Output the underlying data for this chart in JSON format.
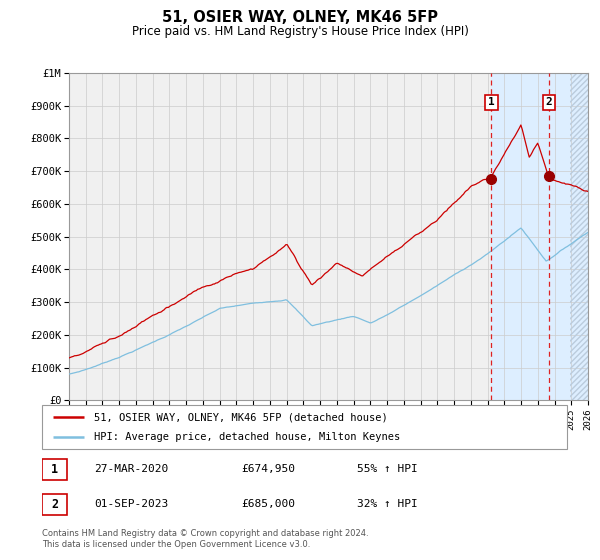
{
  "title": "51, OSIER WAY, OLNEY, MK46 5FP",
  "subtitle": "Price paid vs. HM Land Registry's House Price Index (HPI)",
  "legend_line1": "51, OSIER WAY, OLNEY, MK46 5FP (detached house)",
  "legend_line2": "HPI: Average price, detached house, Milton Keynes",
  "footer1": "Contains HM Land Registry data © Crown copyright and database right 2024.",
  "footer2": "This data is licensed under the Open Government Licence v3.0.",
  "hpi_color": "#7fbfdf",
  "price_color": "#cc0000",
  "marker_color": "#990000",
  "vline_color": "#dd2222",
  "shade_color": "#ddeeff",
  "hatch_color": "#bbccdd",
  "grid_color": "#cccccc",
  "bg_color": "#f0f0f0",
  "xmin": 1995,
  "xmax": 2026,
  "ymin": 0,
  "ymax": 1000000,
  "yticks": [
    0,
    100000,
    200000,
    300000,
    400000,
    500000,
    600000,
    700000,
    800000,
    900000,
    1000000
  ],
  "ytick_labels": [
    "£0",
    "£100K",
    "£200K",
    "£300K",
    "£400K",
    "£500K",
    "£600K",
    "£700K",
    "£800K",
    "£900K",
    "£1M"
  ],
  "point1_x": 2020.23,
  "point1_y": 674950,
  "point1_label": "1",
  "point1_date": "27-MAR-2020",
  "point1_price": "£674,950",
  "point1_hpi": "55% ↑ HPI",
  "point2_x": 2023.67,
  "point2_y": 685000,
  "point2_label": "2",
  "point2_date": "01-SEP-2023",
  "point2_price": "£685,000",
  "point2_hpi": "32% ↑ HPI",
  "vline1_x": 2020.23,
  "vline2_x": 2023.67,
  "shade_start": 2020.23,
  "shade_end": 2026,
  "hatch_start": 2024.9
}
